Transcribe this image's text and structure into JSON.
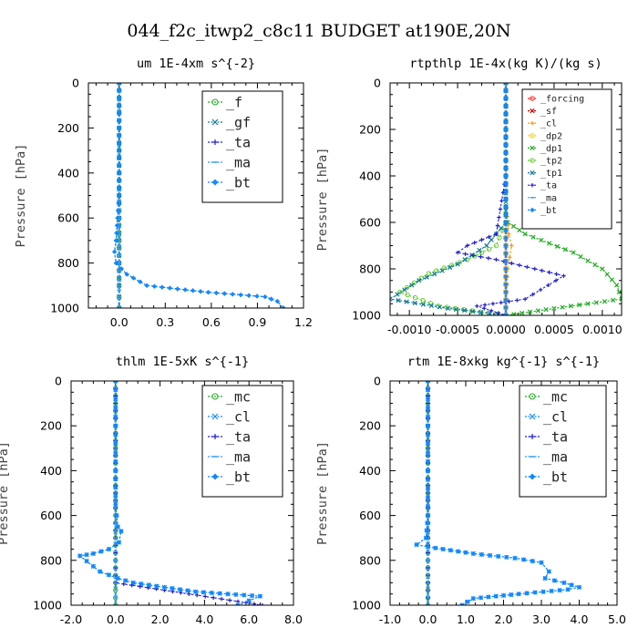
{
  "figure_title": "044_f2c_itwp2_c8c11  BUDGET at190E,20N",
  "chart_data": [
    {
      "type": "line",
      "title": "um  1E-4xm s^{-2}",
      "ylabel": "Pressure [hPa]",
      "xlim": [
        -0.2,
        1.2
      ],
      "ylim": [
        1000,
        0
      ],
      "xticks": [
        0.0,
        0.3,
        0.6,
        0.9,
        1.2
      ],
      "xticklabels": [
        "0.0",
        "0.3",
        "0.6",
        "0.9",
        "1.2"
      ],
      "yticks": [
        0,
        200,
        400,
        600,
        800,
        1000
      ],
      "legend_position": "top-right",
      "series": [
        {
          "name": "_f",
          "color": "#22aa22",
          "marker": "circle",
          "x": [
            0.0,
            0.0,
            0.0,
            0.0,
            0.0,
            0.0,
            0.0,
            0.0,
            0.0,
            0.0,
            0.0,
            0.0
          ],
          "y": [
            0,
            100,
            200,
            300,
            400,
            500,
            600,
            700,
            800,
            900,
            950,
            1000
          ]
        },
        {
          "name": "_gf",
          "color": "#117799",
          "marker": "cross",
          "x": [
            0.0,
            0.0,
            0.0,
            0.0,
            0.0,
            0.0,
            0.0,
            0.0,
            0.0,
            0.0,
            0.0,
            0.0
          ],
          "y": [
            0,
            100,
            200,
            300,
            400,
            500,
            600,
            700,
            800,
            900,
            950,
            1000
          ]
        },
        {
          "name": "_ta",
          "color": "#2222cc",
          "marker": "plus",
          "x": [
            0.0,
            0.0,
            0.0,
            0.0,
            0.0,
            0.0,
            -0.01,
            -0.02,
            -0.03,
            -0.02,
            0.05,
            0.18,
            0.58,
            0.95,
            1.03,
            1.07
          ],
          "y": [
            0,
            100,
            200,
            300,
            400,
            500,
            600,
            700,
            750,
            800,
            850,
            900,
            930,
            950,
            970,
            1000
          ]
        },
        {
          "name": "_ma",
          "color": "#3399ff",
          "marker": "dash",
          "x": [
            0.0,
            0.0,
            0.0,
            0.0,
            0.0,
            0.0
          ],
          "y": [
            0,
            200,
            400,
            600,
            800,
            1000
          ]
        },
        {
          "name": "_bt",
          "color": "#1188ff",
          "marker": "diamond",
          "x": [
            0.0,
            0.0,
            0.0,
            0.0,
            0.0,
            0.0,
            -0.01,
            -0.02,
            -0.03,
            -0.02,
            0.05,
            0.18,
            0.58,
            0.95,
            1.03,
            1.07
          ],
          "y": [
            0,
            100,
            200,
            300,
            400,
            500,
            600,
            700,
            750,
            800,
            850,
            900,
            930,
            950,
            970,
            1000
          ]
        }
      ]
    },
    {
      "type": "line",
      "title": "rtpthlp  1E-4x(kg K)/(kg s)",
      "ylabel": "Pressure [hPa]",
      "xlim": [
        -0.0012,
        0.0012
      ],
      "ylim": [
        1000,
        0
      ],
      "xticks": [
        -0.001,
        -0.0005,
        0.0,
        0.0005,
        0.001
      ],
      "xticklabels": [
        "-0.0010",
        "-0.0005",
        "0.0000",
        "0.0005",
        "0.0010"
      ],
      "yticks": [
        0,
        200,
        400,
        600,
        800,
        1000
      ],
      "legend_position": "top-right",
      "series": [
        {
          "name": "_forcing",
          "color": "#ff2222",
          "marker": "circle",
          "x": [
            0,
            0,
            0,
            0,
            0,
            0,
            0,
            0,
            0,
            0,
            0
          ],
          "y": [
            0,
            100,
            200,
            300,
            400,
            500,
            600,
            700,
            800,
            900,
            1000
          ]
        },
        {
          "name": "_sf",
          "color": "#cc0000",
          "marker": "cross",
          "x": [
            0,
            0,
            0,
            0,
            0,
            0,
            0,
            0,
            0,
            0,
            0
          ],
          "y": [
            0,
            100,
            200,
            300,
            400,
            500,
            600,
            700,
            800,
            900,
            1000
          ]
        },
        {
          "name": "_cl",
          "color": "#ff9900",
          "marker": "plus",
          "x": [
            0,
            0,
            0,
            0,
            0,
            3e-05,
            6e-05,
            4e-05,
            2e-05,
            1e-05,
            0
          ],
          "y": [
            0,
            100,
            200,
            300,
            500,
            650,
            700,
            750,
            800,
            900,
            1000
          ]
        },
        {
          "name": "_dp2",
          "color": "#ffcc00",
          "marker": "circle",
          "x": [
            0,
            0,
            0,
            0,
            0,
            0,
            0,
            0,
            0,
            0,
            0
          ],
          "y": [
            0,
            100,
            200,
            300,
            400,
            500,
            600,
            700,
            800,
            900,
            1000
          ]
        },
        {
          "name": "_dp1",
          "color": "#22aa22",
          "marker": "cross",
          "x": [
            0,
            0,
            0,
            0,
            2e-05,
            0.0002,
            0.0007,
            0.001,
            0.00115,
            0.0012,
            0.0005,
            0
          ],
          "y": [
            0,
            200,
            400,
            550,
            600,
            650,
            730,
            800,
            870,
            930,
            970,
            1000
          ]
        },
        {
          "name": "_tp2",
          "color": "#66cc33",
          "marker": "circle",
          "x": [
            0,
            0,
            0,
            0,
            -0.0001,
            -0.0004,
            -0.0008,
            -0.0011,
            -0.0007,
            0
          ],
          "y": [
            0,
            200,
            400,
            600,
            700,
            760,
            820,
            900,
            960,
            1000
          ]
        },
        {
          "name": "_tp1",
          "color": "#117799",
          "marker": "cross",
          "x": [
            0,
            0,
            0,
            0,
            -0.0002,
            -0.0005,
            -0.0009,
            -0.0012,
            -0.0006,
            0
          ],
          "y": [
            0,
            200,
            400,
            600,
            700,
            780,
            850,
            930,
            970,
            1000
          ]
        },
        {
          "name": "_ta",
          "color": "#2222cc",
          "marker": "plus",
          "x": [
            0,
            0,
            0,
            -0.0001,
            -0.0004,
            -0.0005,
            -0.0001,
            0.0003,
            0.0006,
            0.0002,
            -0.0003,
            0
          ],
          "y": [
            0,
            200,
            400,
            650,
            700,
            730,
            760,
            800,
            830,
            930,
            960,
            1000
          ]
        },
        {
          "name": "_ma",
          "color": "#3399ff",
          "marker": "dash",
          "x": [
            0,
            0,
            0,
            0,
            0,
            0
          ],
          "y": [
            0,
            200,
            400,
            600,
            800,
            1000
          ]
        },
        {
          "name": "_bt",
          "color": "#1188ff",
          "marker": "diamond",
          "x": [
            0,
            0,
            0,
            0,
            0,
            0
          ],
          "y": [
            0,
            200,
            400,
            600,
            800,
            1000
          ]
        }
      ]
    },
    {
      "type": "line",
      "title": "thlm  1E-5xK s^{-1}",
      "ylabel": "Pressure [hPa]",
      "xlim": [
        -2.0,
        8.0
      ],
      "ylim": [
        1000,
        0
      ],
      "xticks": [
        -2.0,
        0.0,
        2.0,
        4.0,
        6.0,
        8.0
      ],
      "xticklabels": [
        "-2.0",
        "0.0",
        "2.0",
        "4.0",
        "6.0",
        "8.0"
      ],
      "yticks": [
        0,
        200,
        400,
        600,
        800,
        1000
      ],
      "legend_position": "top-right",
      "series": [
        {
          "name": "_mc",
          "color": "#22aa22",
          "marker": "circle",
          "x": [
            0,
            0,
            0,
            0,
            0,
            0,
            0,
            0,
            0,
            0,
            0
          ],
          "y": [
            0,
            100,
            200,
            300,
            400,
            500,
            600,
            700,
            800,
            900,
            1000
          ]
        },
        {
          "name": "_cl",
          "color": "#1188ff",
          "marker": "cross",
          "x": [
            0,
            0,
            0,
            0,
            0.05,
            0.1,
            0.25,
            0.15,
            -0.3,
            -1.0,
            -1.6,
            -0.7,
            0.1,
            0.8,
            3.6,
            6.5,
            6.0,
            5.5
          ],
          "y": [
            0,
            200,
            400,
            550,
            600,
            650,
            670,
            720,
            750,
            770,
            780,
            850,
            880,
            900,
            940,
            960,
            980,
            1000
          ]
        },
        {
          "name": "_ta",
          "color": "#2222cc",
          "marker": "plus",
          "x": [
            0,
            0,
            0,
            0,
            0,
            0,
            0,
            0,
            0,
            0,
            6.6
          ],
          "y": [
            0,
            100,
            200,
            300,
            400,
            500,
            600,
            700,
            800,
            900,
            1000
          ]
        },
        {
          "name": "_ma",
          "color": "#3399ff",
          "marker": "dash",
          "x": [
            0,
            0,
            0,
            0,
            0,
            0
          ],
          "y": [
            0,
            200,
            400,
            600,
            800,
            1000
          ]
        },
        {
          "name": "_bt",
          "color": "#1188ff",
          "marker": "diamond",
          "x": [
            0,
            0,
            0,
            0,
            0.05,
            0.1,
            0.25,
            0.15,
            -0.3,
            -1.0,
            -1.6,
            -0.7,
            0.1,
            0.8,
            3.6,
            6.5,
            6.0,
            5.5
          ],
          "y": [
            0,
            200,
            400,
            550,
            600,
            650,
            670,
            720,
            750,
            770,
            780,
            850,
            880,
            900,
            940,
            960,
            980,
            1000
          ]
        }
      ]
    },
    {
      "type": "line",
      "title": "rtm  1E-8xkg kg^{-1} s^{-1}",
      "ylabel": "Pressure [hPa]",
      "xlim": [
        -1.0,
        5.0
      ],
      "ylim": [
        1000,
        0
      ],
      "xticks": [
        -1.0,
        0.0,
        1.0,
        2.0,
        3.0,
        4.0,
        5.0
      ],
      "xticklabels": [
        "-1.0",
        "0.0",
        "1.0",
        "2.0",
        "3.0",
        "4.0",
        "5.0"
      ],
      "yticks": [
        0,
        200,
        400,
        600,
        800,
        1000
      ],
      "legend_position": "top-right",
      "series": [
        {
          "name": "_mc",
          "color": "#22aa22",
          "marker": "circle",
          "x": [
            0,
            0,
            0,
            0,
            0,
            0,
            0,
            0,
            0,
            0,
            0
          ],
          "y": [
            0,
            100,
            200,
            300,
            400,
            500,
            600,
            700,
            800,
            900,
            1000
          ]
        },
        {
          "name": "_cl",
          "color": "#1188ff",
          "marker": "cross",
          "x": [
            0,
            0,
            0,
            0,
            -0.05,
            -0.3,
            0.0,
            1.2,
            2.3,
            3.0,
            3.2,
            3.1,
            3.6,
            4.0,
            3.7,
            2.4,
            1.2,
            0.9
          ],
          "y": [
            0,
            200,
            400,
            600,
            700,
            730,
            740,
            770,
            790,
            810,
            850,
            880,
            900,
            920,
            930,
            950,
            970,
            1000
          ]
        },
        {
          "name": "_ta",
          "color": "#2222cc",
          "marker": "plus",
          "x": [
            0,
            0,
            0,
            0,
            0,
            0,
            0,
            0,
            0,
            0,
            0
          ],
          "y": [
            0,
            100,
            200,
            300,
            400,
            500,
            600,
            700,
            800,
            900,
            1000
          ]
        },
        {
          "name": "_ma",
          "color": "#3399ff",
          "marker": "dash",
          "x": [
            0,
            0,
            0,
            0,
            0,
            0
          ],
          "y": [
            0,
            200,
            400,
            600,
            800,
            1000
          ]
        },
        {
          "name": "_bt",
          "color": "#1188ff",
          "marker": "diamond",
          "x": [
            0,
            0,
            0,
            0,
            -0.05,
            -0.3,
            0.0,
            1.2,
            2.3,
            3.0,
            3.2,
            3.1,
            3.6,
            4.0,
            3.7,
            2.4,
            1.2,
            0.9
          ],
          "y": [
            0,
            200,
            400,
            600,
            700,
            730,
            740,
            770,
            790,
            810,
            850,
            880,
            900,
            920,
            930,
            950,
            970,
            1000
          ]
        }
      ]
    }
  ]
}
